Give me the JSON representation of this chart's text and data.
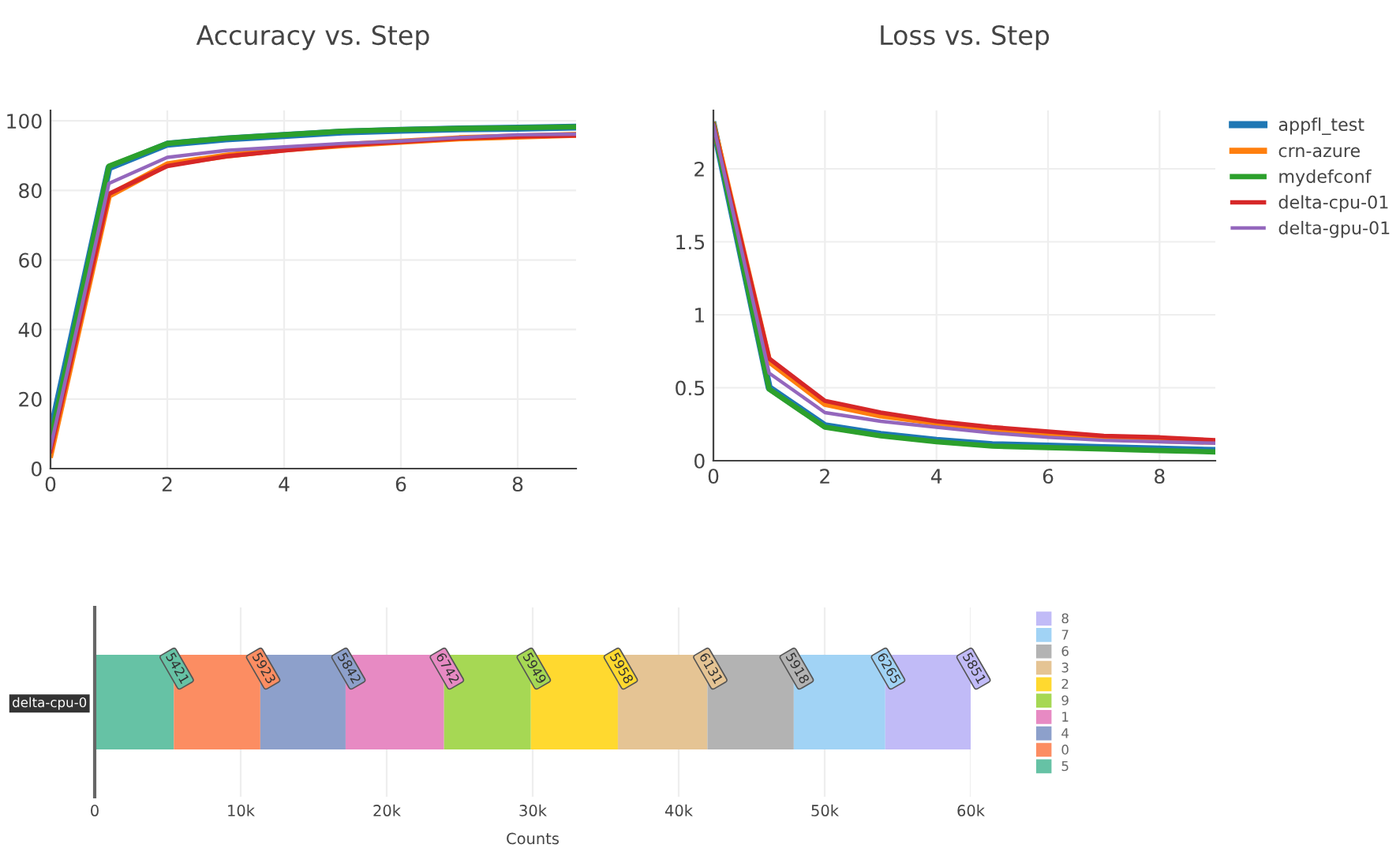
{
  "chart_data": [
    {
      "type": "line",
      "title": "Accuracy vs. Step",
      "x": [
        0,
        1,
        2,
        3,
        4,
        5,
        6,
        7,
        8,
        9
      ],
      "xlim": [
        0,
        9
      ],
      "xticks": [
        0,
        2,
        4,
        6,
        8
      ],
      "ylim": [
        0,
        103
      ],
      "yticks": [
        0,
        20,
        40,
        60,
        80,
        100
      ],
      "grid": true,
      "line_style": "solid",
      "series": [
        {
          "color": "#1f77b4",
          "values": [
            10,
            86.5,
            93.3,
            94.8,
            95.8,
            96.8,
            97.3,
            97.7,
            97.9,
            98.2
          ]
        },
        {
          "color": "#ff7f0e",
          "values": [
            4,
            78.5,
            87.5,
            90,
            91.8,
            93,
            94,
            95,
            95.5,
            96
          ]
        },
        {
          "color": "#2ca02c",
          "values": [
            8,
            87,
            93.5,
            95,
            96,
            97,
            97.5,
            97.8,
            98,
            98.3
          ]
        },
        {
          "color": "#d62728",
          "values": [
            5,
            79,
            87,
            89.8,
            91.5,
            93,
            94,
            95,
            95.5,
            95.8
          ]
        },
        {
          "color": "#9467bd",
          "values": [
            6,
            82,
            89.5,
            91.5,
            92.5,
            93.5,
            94.2,
            95.2,
            96,
            96.2
          ]
        }
      ]
    },
    {
      "type": "line",
      "title": "Loss vs. Step",
      "x": [
        0,
        1,
        2,
        3,
        4,
        5,
        6,
        7,
        8,
        9
      ],
      "xlim": [
        0,
        9
      ],
      "xticks": [
        0,
        2,
        4,
        6,
        8
      ],
      "ylim": [
        0,
        2.4
      ],
      "yticks": [
        0,
        0.5,
        1,
        1.5,
        2
      ],
      "grid": true,
      "legend": "right",
      "line_style": "solid",
      "series": [
        {
          "name": "appfl_test",
          "color": "#1f77b4",
          "values": [
            2.3,
            0.5,
            0.24,
            0.18,
            0.14,
            0.11,
            0.1,
            0.09,
            0.08,
            0.07
          ]
        },
        {
          "name": "crn-azure",
          "color": "#ff7f0e",
          "values": [
            2.3,
            0.68,
            0.39,
            0.31,
            0.26,
            0.22,
            0.18,
            0.16,
            0.14,
            0.13
          ]
        },
        {
          "name": "mydefconf",
          "color": "#2ca02c",
          "values": [
            2.3,
            0.49,
            0.23,
            0.17,
            0.13,
            0.1,
            0.09,
            0.08,
            0.07,
            0.06
          ]
        },
        {
          "name": "delta-cpu-01",
          "color": "#d62728",
          "values": [
            2.3,
            0.7,
            0.41,
            0.33,
            0.27,
            0.23,
            0.2,
            0.17,
            0.16,
            0.14
          ]
        },
        {
          "name": "delta-gpu-01",
          "color": "#9467bd",
          "values": [
            2.3,
            0.6,
            0.33,
            0.27,
            0.23,
            0.19,
            0.16,
            0.14,
            0.13,
            0.12
          ]
        }
      ]
    },
    {
      "type": "bar",
      "orientation": "horizontal",
      "stacked": true,
      "categories": [
        "delta-cpu-0"
      ],
      "xlabel": "Counts",
      "xlim": [
        0,
        60000
      ],
      "xticks": [
        0,
        {
          "value": 10000,
          "label": "10k"
        },
        {
          "value": 20000,
          "label": "20k"
        },
        {
          "value": 30000,
          "label": "30k"
        },
        {
          "value": 40000,
          "label": "40k"
        },
        {
          "value": 50000,
          "label": "50k"
        },
        {
          "value": 60000,
          "label": "60k"
        }
      ],
      "grid": "x",
      "legend": "right",
      "data_labels": true,
      "series": [
        {
          "name": "5",
          "color": "#66c2a5",
          "values": [
            5421
          ]
        },
        {
          "name": "0",
          "color": "#fc8d62",
          "values": [
            5923
          ]
        },
        {
          "name": "4",
          "color": "#8da0cb",
          "values": [
            5842
          ]
        },
        {
          "name": "1",
          "color": "#e78ac3",
          "values": [
            6742
          ]
        },
        {
          "name": "9",
          "color": "#a6d854",
          "values": [
            5949
          ]
        },
        {
          "name": "2",
          "color": "#ffd92f",
          "values": [
            5958
          ]
        },
        {
          "name": "3",
          "color": "#e5c494",
          "values": [
            6131
          ]
        },
        {
          "name": "6",
          "color": "#b3b3b3",
          "values": [
            5918
          ]
        },
        {
          "name": "7",
          "color": "#a1d3f5",
          "values": [
            6265
          ]
        },
        {
          "name": "8",
          "color": "#c1bbf7",
          "values": [
            5851
          ]
        }
      ]
    }
  ]
}
